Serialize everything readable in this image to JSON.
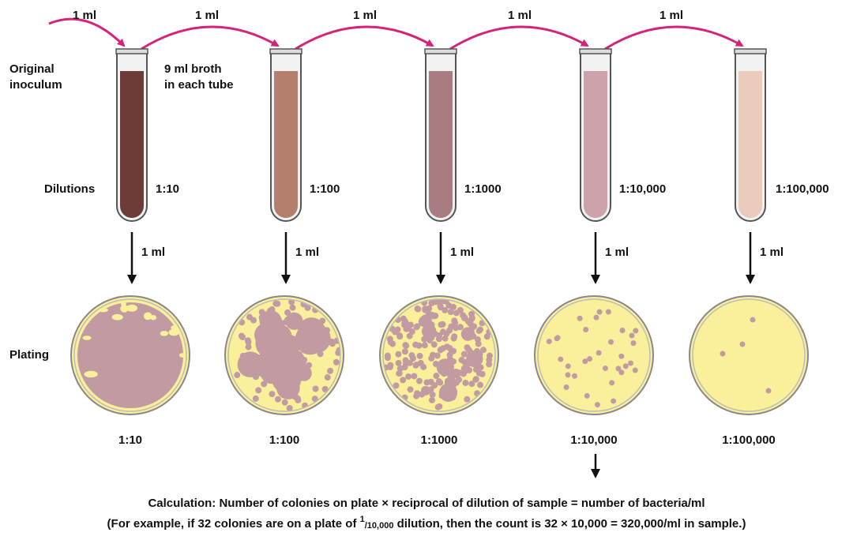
{
  "left_labels": {
    "original": [
      "Original",
      "inoculum"
    ],
    "broth": [
      "9 ml broth",
      "in each tube"
    ],
    "dilutions": "Dilutions",
    "plating": "Plating"
  },
  "tubes": [
    {
      "transfer": "1 ml",
      "dilution": "1:10",
      "plate_transfer": "1 ml"
    },
    {
      "transfer": "1 ml",
      "dilution": "1:100",
      "plate_transfer": "1 ml"
    },
    {
      "transfer": "1 ml",
      "dilution": "1:1000",
      "plate_transfer": "1 ml"
    },
    {
      "transfer": "1 ml",
      "dilution": "1:10,000",
      "plate_transfer": "1 ml"
    },
    {
      "transfer": "1 ml",
      "dilution": "1:100,000",
      "plate_transfer": "1 ml"
    }
  ],
  "plates": [
    {
      "dilution": "1:10"
    },
    {
      "dilution": "1:100"
    },
    {
      "dilution": "1:1000"
    },
    {
      "dilution": "1:10,000"
    },
    {
      "dilution": "1:100,000"
    }
  ],
  "calculation": {
    "formula": "Calculation: Number of colonies on plate × reciprocal of dilution of sample = number of bacteria/ml",
    "example": {
      "before": "(For example, if 32 colonies are on a plate of ",
      "numerator": "1",
      "denominator": "/10,000",
      "after": " dilution, then the count is 32 × 10,000 = 320,000/ml in sample.)"
    }
  }
}
